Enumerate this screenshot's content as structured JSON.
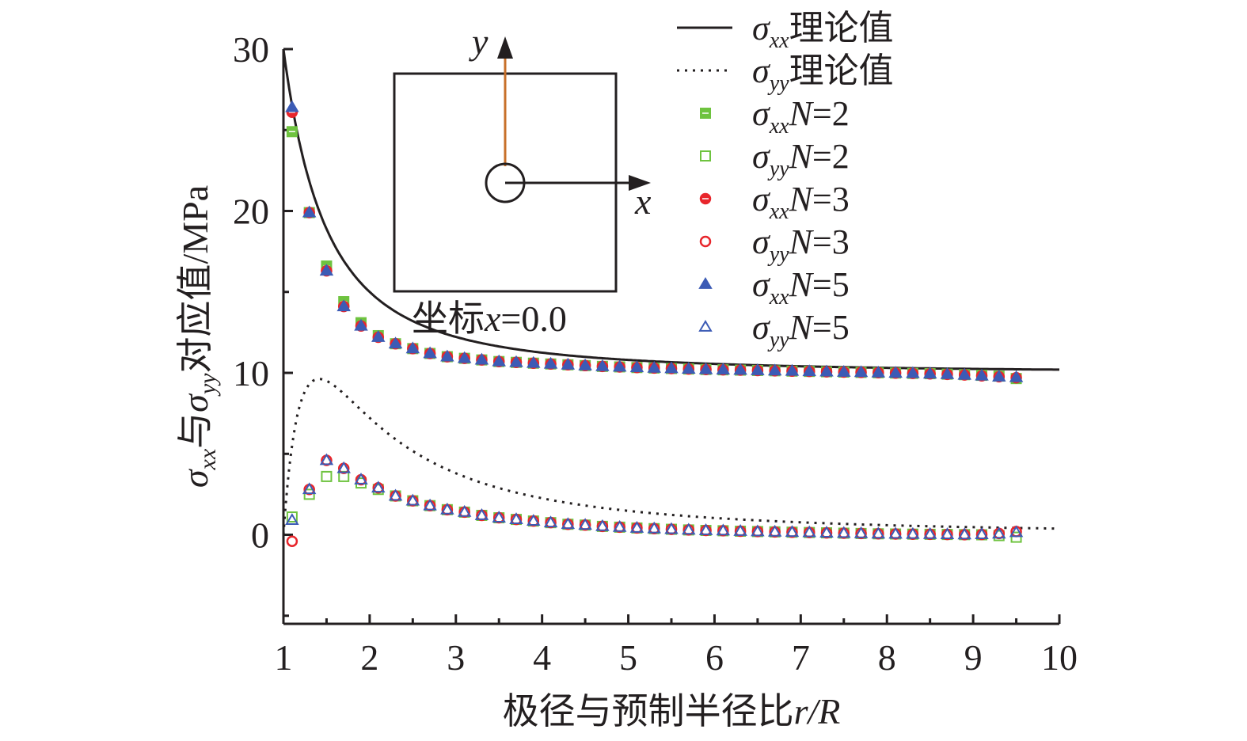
{
  "chart_data": {
    "type": "scatter",
    "xlabel_prefix": "极径与预制半径比",
    "xlabel_var": "r/R",
    "ylabel_parts": {
      "sigma": "σ",
      "xx": "xx",
      "yu": "与",
      "yy": "yy",
      "rest": "对应值/MPa"
    },
    "xlim": [
      1,
      10
    ],
    "ylim": [
      -5.5,
      30
    ],
    "xticks": [
      "1",
      "2",
      "3",
      "4",
      "5",
      "6",
      "7",
      "8",
      "9",
      "10"
    ],
    "yticks": [
      "0",
      "10",
      "20",
      "30"
    ],
    "inset": {
      "y_label": "y",
      "x_label": "x",
      "caption_prefix": "坐标",
      "caption_var": "x",
      "caption_value": "=0.0"
    },
    "legend": [
      {
        "sym": "σ",
        "sub": "xx",
        "text": "理论值",
        "marker": "line-solid",
        "color": "#231f20"
      },
      {
        "sym": "σ",
        "sub": "yy",
        "text": "理论值",
        "marker": "line-dotted",
        "color": "#231f20"
      },
      {
        "sym": "σ",
        "sub": "xx",
        "var": "N",
        "text": "=2",
        "marker": "square-filled",
        "color": "#6ec33f"
      },
      {
        "sym": "σ",
        "sub": "yy",
        "var": "N",
        "text": "=2",
        "marker": "square-open",
        "color": "#6ec33f"
      },
      {
        "sym": "σ",
        "sub": "xx",
        "var": "N",
        "text": "=3",
        "marker": "circle-filled",
        "color": "#e8262c"
      },
      {
        "sym": "σ",
        "sub": "yy",
        "var": "N",
        "text": "=3",
        "marker": "circle-open",
        "color": "#e8262c"
      },
      {
        "sym": "σ",
        "sub": "xx",
        "var": "N",
        "text": "=5",
        "marker": "triangle-filled",
        "color": "#3c5bb5"
      },
      {
        "sym": "σ",
        "sub": "yy",
        "var": "N",
        "text": "=5",
        "marker": "triangle-open",
        "color": "#3c5bb5"
      }
    ],
    "x_points": [
      1.1,
      1.3,
      1.5,
      1.7,
      1.9,
      2.1,
      2.3,
      2.5,
      2.7,
      2.9,
      3.1,
      3.3,
      3.5,
      3.7,
      3.9,
      4.1,
      4.3,
      4.5,
      4.7,
      4.9,
      5.1,
      5.3,
      5.5,
      5.7,
      5.9,
      6.1,
      6.3,
      6.5,
      6.7,
      6.9,
      7.1,
      7.3,
      7.5,
      7.7,
      7.9,
      8.1,
      8.3,
      8.5,
      8.7,
      8.9,
      9.1,
      9.3,
      9.5
    ],
    "series": [
      {
        "name": "σxx N=2",
        "marker": "square-filled",
        "color": "#6ec33f",
        "values": [
          24.9,
          19.9,
          16.6,
          14.4,
          13.1,
          12.3,
          11.8,
          11.5,
          11.2,
          11.0,
          10.9,
          10.8,
          10.7,
          10.65,
          10.6,
          10.55,
          10.5,
          10.45,
          10.4,
          10.37,
          10.33,
          10.3,
          10.27,
          10.24,
          10.21,
          10.19,
          10.17,
          10.15,
          10.13,
          10.11,
          10.09,
          10.07,
          10.05,
          10.03,
          10.01,
          9.99,
          9.97,
          9.95,
          9.92,
          9.89,
          9.85,
          9.8,
          9.65
        ]
      },
      {
        "name": "σyy N=2",
        "marker": "square-open",
        "color": "#6ec33f",
        "values": [
          1.1,
          2.5,
          3.6,
          3.6,
          3.2,
          2.8,
          2.4,
          2.1,
          1.8,
          1.55,
          1.4,
          1.2,
          1.05,
          0.95,
          0.85,
          0.75,
          0.65,
          0.6,
          0.52,
          0.47,
          0.42,
          0.38,
          0.34,
          0.3,
          0.27,
          0.25,
          0.22,
          0.2,
          0.18,
          0.16,
          0.14,
          0.12,
          0.1,
          0.08,
          0.06,
          0.05,
          0.04,
          0.03,
          0.02,
          0.01,
          0.0,
          -0.05,
          -0.15
        ]
      },
      {
        "name": "σxx N=3",
        "marker": "circle-filled",
        "color": "#e8262c",
        "values": [
          26.1,
          19.9,
          16.3,
          14.1,
          12.9,
          12.2,
          11.8,
          11.5,
          11.2,
          11.0,
          10.9,
          10.8,
          10.7,
          10.65,
          10.6,
          10.55,
          10.5,
          10.45,
          10.4,
          10.37,
          10.33,
          10.3,
          10.27,
          10.24,
          10.21,
          10.19,
          10.17,
          10.15,
          10.13,
          10.11,
          10.09,
          10.07,
          10.05,
          10.03,
          10.01,
          9.99,
          9.97,
          9.94,
          9.91,
          9.87,
          9.82,
          9.76,
          9.7
        ]
      },
      {
        "name": "σyy N=3",
        "marker": "circle-open",
        "color": "#e8262c",
        "values": [
          -0.4,
          2.8,
          4.6,
          4.1,
          3.4,
          2.9,
          2.4,
          2.1,
          1.8,
          1.55,
          1.4,
          1.2,
          1.05,
          0.95,
          0.85,
          0.75,
          0.65,
          0.6,
          0.52,
          0.47,
          0.42,
          0.38,
          0.34,
          0.3,
          0.27,
          0.25,
          0.22,
          0.2,
          0.18,
          0.16,
          0.14,
          0.12,
          0.1,
          0.08,
          0.06,
          0.05,
          0.04,
          0.03,
          0.02,
          0.01,
          0.02,
          0.08,
          0.2
        ]
      },
      {
        "name": "σxx N=5",
        "marker": "triangle-filled",
        "color": "#3c5bb5",
        "values": [
          26.4,
          19.9,
          16.3,
          14.1,
          12.9,
          12.2,
          11.8,
          11.5,
          11.2,
          11.0,
          10.9,
          10.8,
          10.7,
          10.65,
          10.6,
          10.55,
          10.5,
          10.45,
          10.4,
          10.37,
          10.33,
          10.3,
          10.27,
          10.24,
          10.21,
          10.19,
          10.17,
          10.15,
          10.13,
          10.11,
          10.09,
          10.07,
          10.05,
          10.03,
          10.01,
          9.99,
          9.97,
          9.94,
          9.91,
          9.87,
          9.82,
          9.76,
          9.72
        ]
      },
      {
        "name": "σyy N=5",
        "marker": "triangle-open",
        "color": "#3c5bb5",
        "values": [
          0.9,
          2.8,
          4.6,
          4.1,
          3.4,
          2.9,
          2.4,
          2.1,
          1.8,
          1.55,
          1.4,
          1.2,
          1.05,
          0.95,
          0.85,
          0.75,
          0.65,
          0.6,
          0.52,
          0.47,
          0.42,
          0.38,
          0.34,
          0.3,
          0.27,
          0.25,
          0.22,
          0.2,
          0.18,
          0.16,
          0.14,
          0.12,
          0.1,
          0.08,
          0.06,
          0.05,
          0.04,
          0.03,
          0.02,
          0.01,
          0.02,
          0.06,
          0.15
        ]
      }
    ],
    "theory_lines": [
      {
        "name": "σxx 理论值",
        "style": "solid",
        "color": "#231f20"
      },
      {
        "name": "σyy 理论值",
        "style": "dotted",
        "color": "#231f20"
      }
    ],
    "colors": {
      "axis": "#231f20",
      "inset_arrow": "#c8702a"
    }
  }
}
